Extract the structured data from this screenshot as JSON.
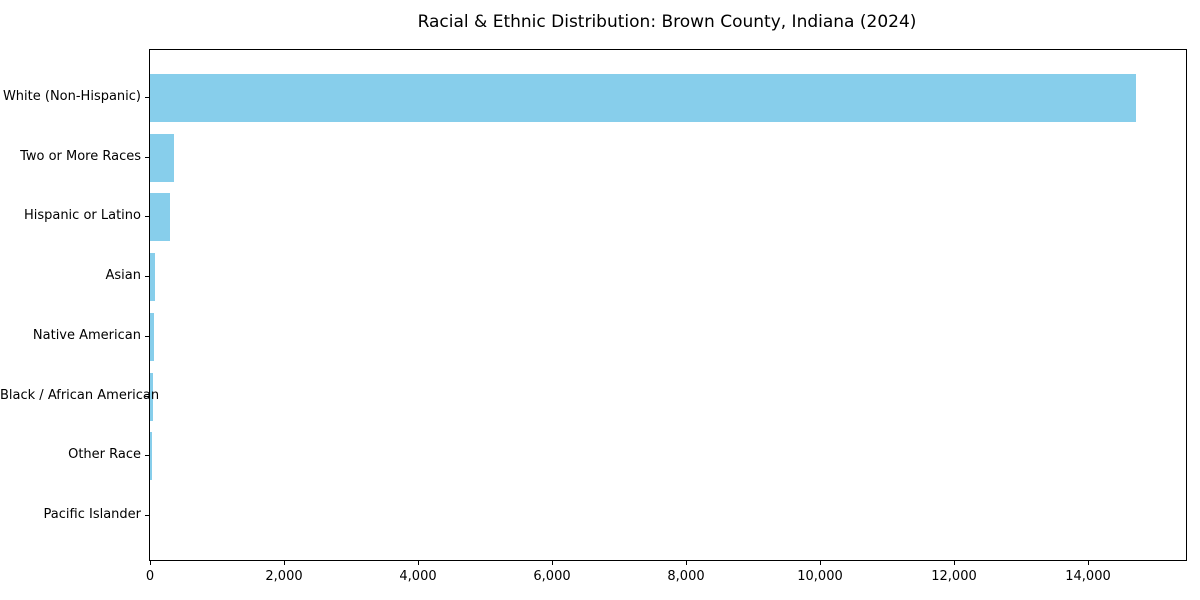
{
  "chart_data": {
    "type": "bar",
    "orientation": "horizontal",
    "title": "Racial & Ethnic Distribution: Brown County, Indiana (2024)",
    "categories": [
      "White (Non-Hispanic)",
      "Two or More Races",
      "Hispanic or Latino",
      "Asian",
      "Native American",
      "Black / African American",
      "Other Race",
      "Pacific Islander"
    ],
    "values": [
      14720,
      355,
      300,
      78,
      57,
      50,
      36,
      5
    ],
    "xlabel": "",
    "ylabel": "",
    "xlim": [
      0,
      15460
    ],
    "x_ticks": [
      0,
      2000,
      4000,
      6000,
      8000,
      10000,
      12000,
      14000
    ],
    "x_tick_labels": [
      "0",
      "2,000",
      "4,000",
      "6,000",
      "8,000",
      "10,000",
      "12,000",
      "14,000"
    ],
    "bar_color": "#87ceeb",
    "axis_color": "#000000",
    "grid": false,
    "legend": "none",
    "background": "#ffffff"
  }
}
